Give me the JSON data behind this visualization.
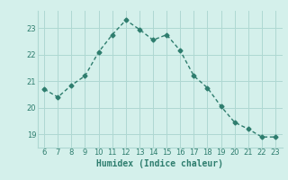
{
  "x": [
    6,
    7,
    8,
    9,
    10,
    11,
    12,
    13,
    14,
    15,
    16,
    17,
    18,
    19,
    20,
    21,
    22,
    23
  ],
  "y": [
    20.7,
    20.4,
    20.85,
    21.2,
    22.1,
    22.75,
    23.3,
    22.95,
    22.55,
    22.75,
    22.15,
    21.2,
    20.75,
    20.05,
    19.45,
    19.2,
    18.9,
    18.9
  ],
  "xlim": [
    5.5,
    23.5
  ],
  "ylim": [
    18.5,
    23.65
  ],
  "yticks": [
    19,
    20,
    21,
    22,
    23
  ],
  "xticks": [
    6,
    7,
    8,
    9,
    10,
    11,
    12,
    13,
    14,
    15,
    16,
    17,
    18,
    19,
    20,
    21,
    22,
    23
  ],
  "xlabel": "Humidex (Indice chaleur)",
  "line_color": "#2e7d6e",
  "bg_color": "#d4f0eb",
  "grid_color": "#aed8d2",
  "marker": "D",
  "marker_size": 2.5,
  "linewidth": 1.0
}
